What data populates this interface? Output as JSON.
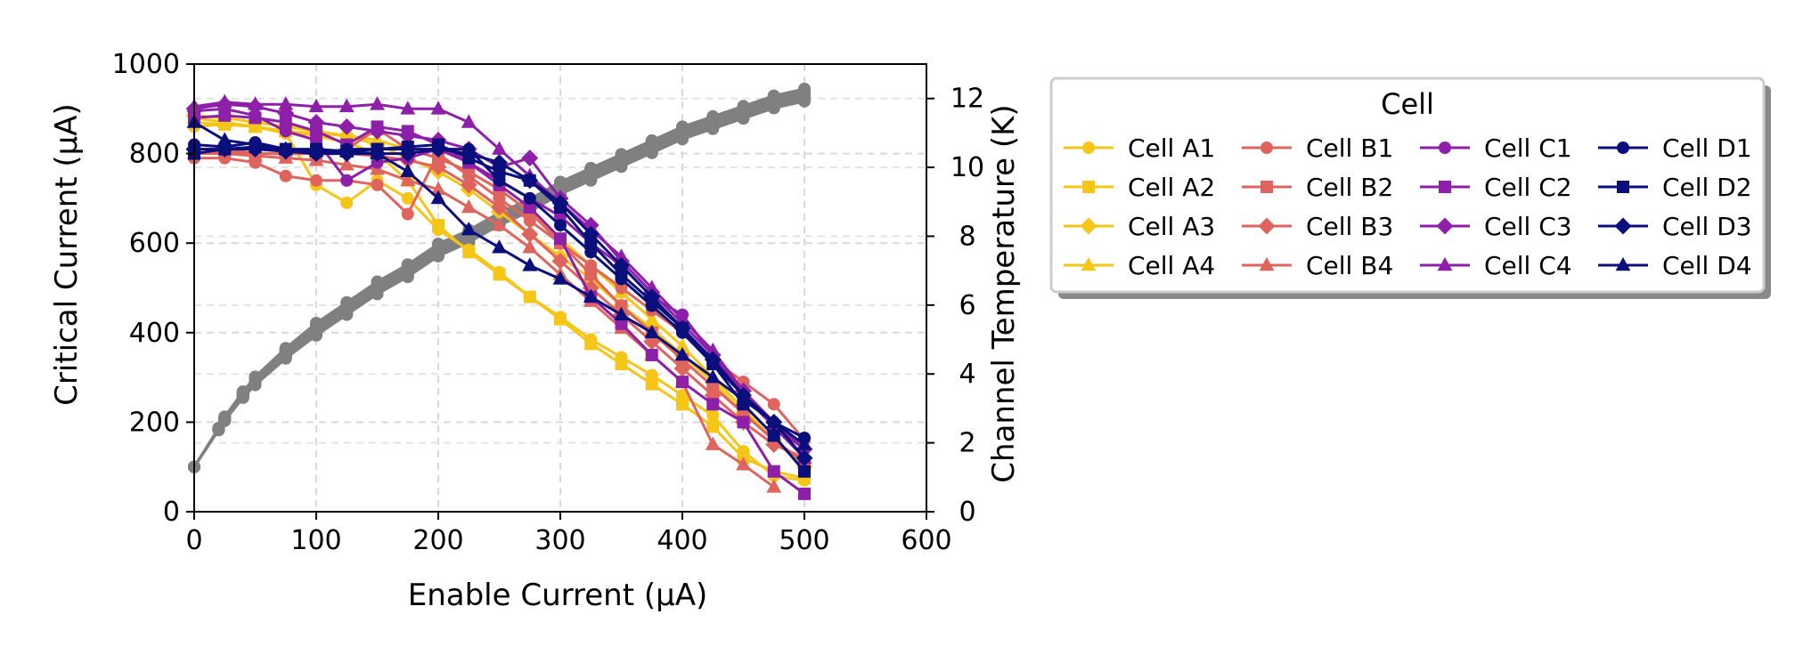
{
  "chart_data": {
    "type": "line",
    "xlabel": "Enable Current (μA)",
    "ylabel": "Critical Current (μA)",
    "y2label": "Channel Temperature (K)",
    "xlim": [
      0,
      600
    ],
    "ylim": [
      0,
      1000
    ],
    "y2lim": [
      0,
      13
    ],
    "xticks": [
      0,
      100,
      200,
      300,
      400,
      500,
      600
    ],
    "yticks": [
      0,
      200,
      400,
      600,
      800,
      1000
    ],
    "y2ticks": [
      0,
      2,
      4,
      6,
      8,
      10,
      12
    ],
    "grid": true,
    "legend": {
      "title": "Cell",
      "placement": "outside-right",
      "columns": 4
    },
    "series": [
      {
        "name": "Cell A1",
        "color": "#f5c518",
        "marker": "circle",
        "x": [
          0,
          25,
          50,
          75,
          100,
          125,
          150,
          175,
          200,
          225,
          250,
          275,
          300,
          325,
          350,
          375,
          400,
          425,
          450,
          475,
          500
        ],
        "y": [
          860,
          865,
          860,
          845,
          730,
          690,
          740,
          700,
          630,
          585,
          535,
          480,
          435,
          385,
          345,
          305,
          260,
          215,
          135,
          80,
          70
        ]
      },
      {
        "name": "Cell A2",
        "color": "#f5c518",
        "marker": "square",
        "x": [
          0,
          25,
          50,
          75,
          100,
          125,
          150,
          175,
          200,
          225,
          250,
          275,
          300,
          325,
          350,
          375,
          400,
          425,
          450,
          475,
          500
        ],
        "y": [
          870,
          865,
          860,
          850,
          840,
          825,
          800,
          740,
          640,
          580,
          530,
          480,
          430,
          375,
          330,
          285,
          240,
          190,
          120,
          90,
          75
        ]
      },
      {
        "name": "Cell A3",
        "color": "#f5c518",
        "marker": "diamond",
        "x": [
          0,
          25,
          50,
          75,
          100,
          125,
          150,
          175,
          200,
          225,
          250,
          275,
          300,
          325,
          350,
          375,
          400,
          425,
          450,
          475,
          500
        ],
        "y": [
          885,
          880,
          870,
          860,
          850,
          840,
          820,
          790,
          760,
          720,
          670,
          620,
          570,
          520,
          460,
          410,
          350,
          290,
          220,
          160,
          100
        ]
      },
      {
        "name": "Cell A4",
        "color": "#f5c518",
        "marker": "triangle",
        "x": [
          0,
          25,
          50,
          75,
          100,
          125,
          150,
          175,
          200,
          225,
          250,
          275,
          300,
          325,
          350,
          375,
          400,
          425,
          450,
          475,
          500
        ],
        "y": [
          880,
          870,
          860,
          850,
          845,
          840,
          830,
          810,
          790,
          760,
          720,
          670,
          610,
          550,
          490,
          430,
          370,
          300,
          230,
          160,
          110
        ]
      },
      {
        "name": "Cell B1",
        "color": "#e0645e",
        "marker": "circle",
        "x": [
          0,
          25,
          50,
          75,
          100,
          125,
          150,
          175,
          200,
          225,
          250,
          275,
          300,
          325,
          350,
          375,
          400,
          425,
          450,
          475,
          500
        ],
        "y": [
          790,
          790,
          780,
          750,
          740,
          740,
          730,
          665,
          800,
          750,
          700,
          650,
          600,
          550,
          500,
          450,
          400,
          340,
          290,
          240,
          160
        ]
      },
      {
        "name": "Cell B2",
        "color": "#e0645e",
        "marker": "square",
        "x": [
          0,
          25,
          50,
          75,
          100,
          125,
          150,
          175,
          200,
          225,
          250,
          275,
          300,
          325,
          350,
          375,
          400,
          425,
          450,
          475,
          500
        ],
        "y": [
          800,
          805,
          800,
          800,
          800,
          810,
          855,
          810,
          790,
          760,
          720,
          670,
          600,
          530,
          460,
          400,
          340,
          280,
          220,
          160,
          110
        ]
      },
      {
        "name": "Cell B3",
        "color": "#e0645e",
        "marker": "diamond",
        "x": [
          0,
          25,
          50,
          75,
          100,
          125,
          150,
          175,
          200,
          225,
          250,
          275,
          300,
          325,
          350,
          375,
          400,
          425,
          450,
          475,
          500
        ],
        "y": [
          810,
          810,
          800,
          800,
          800,
          800,
          795,
          785,
          770,
          730,
          680,
          620,
          560,
          500,
          440,
          380,
          320,
          260,
          200,
          150,
          120
        ]
      },
      {
        "name": "Cell B4",
        "color": "#e0645e",
        "marker": "triangle",
        "x": [
          0,
          25,
          50,
          75,
          100,
          125,
          150,
          175,
          200,
          225,
          250,
          275,
          300,
          325,
          350,
          375,
          400,
          425,
          450,
          475,
          500
        ],
        "y": [
          800,
          800,
          795,
          790,
          785,
          775,
          765,
          740,
          720,
          680,
          640,
          590,
          530,
          470,
          410,
          350,
          290,
          150,
          105,
          55,
          null
        ]
      },
      {
        "name": "Cell C1",
        "color": "#8e1fa8",
        "marker": "circle",
        "x": [
          0,
          25,
          50,
          75,
          100,
          125,
          150,
          175,
          200,
          225,
          250,
          275,
          300,
          325,
          350,
          375,
          400,
          425,
          450,
          475,
          500
        ],
        "y": [
          895,
          900,
          885,
          850,
          830,
          740,
          780,
          790,
          810,
          780,
          740,
          700,
          660,
          600,
          550,
          480,
          440,
          350,
          260,
          190,
          140
        ]
      },
      {
        "name": "Cell C2",
        "color": "#8e1fa8",
        "marker": "square",
        "x": [
          0,
          25,
          50,
          75,
          100,
          125,
          150,
          175,
          200,
          225,
          250,
          275,
          300,
          325,
          350,
          375,
          400,
          425,
          450,
          475,
          500
        ],
        "y": [
          880,
          885,
          880,
          870,
          850,
          820,
          860,
          850,
          820,
          780,
          730,
          680,
          610,
          480,
          420,
          350,
          290,
          240,
          200,
          90,
          40
        ]
      },
      {
        "name": "Cell C3",
        "color": "#8e1fa8",
        "marker": "diamond",
        "x": [
          0,
          25,
          50,
          75,
          100,
          125,
          150,
          175,
          200,
          225,
          250,
          275,
          300,
          325,
          350,
          375,
          400,
          425,
          450,
          475,
          500
        ],
        "y": [
          900,
          910,
          905,
          890,
          870,
          860,
          850,
          840,
          830,
          810,
          770,
          790,
          700,
          640,
          560,
          490,
          420,
          350,
          270,
          200,
          140
        ]
      },
      {
        "name": "Cell C4",
        "color": "#8e1fa8",
        "marker": "triangle",
        "x": [
          0,
          25,
          50,
          75,
          100,
          125,
          150,
          175,
          200,
          225,
          250,
          275,
          300,
          325,
          350,
          375,
          400,
          425,
          450,
          475,
          500
        ],
        "y": [
          905,
          915,
          910,
          910,
          905,
          905,
          910,
          900,
          900,
          870,
          810,
          750,
          690,
          630,
          570,
          500,
          430,
          360,
          270,
          190,
          120
        ]
      },
      {
        "name": "Cell D1",
        "color": "#0b0f7c",
        "marker": "circle",
        "x": [
          0,
          25,
          50,
          75,
          100,
          125,
          150,
          175,
          200,
          225,
          250,
          275,
          300,
          325,
          350,
          375,
          400,
          425,
          450,
          475,
          500
        ],
        "y": [
          820,
          815,
          825,
          810,
          800,
          810,
          810,
          810,
          810,
          810,
          740,
          700,
          640,
          580,
          520,
          460,
          400,
          330,
          260,
          200,
          165
        ]
      },
      {
        "name": "Cell D2",
        "color": "#0b0f7c",
        "marker": "square",
        "x": [
          0,
          25,
          50,
          75,
          100,
          125,
          150,
          175,
          200,
          225,
          250,
          275,
          300,
          325,
          350,
          375,
          400,
          425,
          450,
          475,
          500
        ],
        "y": [
          800,
          810,
          815,
          810,
          810,
          805,
          810,
          815,
          820,
          790,
          760,
          740,
          680,
          600,
          530,
          470,
          410,
          330,
          240,
          170,
          90
        ]
      },
      {
        "name": "Cell D3",
        "color": "#0b0f7c",
        "marker": "diamond",
        "x": [
          0,
          25,
          50,
          75,
          100,
          125,
          150,
          175,
          200,
          225,
          250,
          275,
          300,
          325,
          350,
          375,
          400,
          425,
          450,
          475,
          500
        ],
        "y": [
          810,
          810,
          810,
          805,
          800,
          800,
          800,
          800,
          810,
          800,
          780,
          740,
          690,
          620,
          550,
          480,
          410,
          340,
          260,
          200,
          120
        ]
      },
      {
        "name": "Cell D4",
        "color": "#0b0f7c",
        "marker": "triangle",
        "x": [
          0,
          25,
          50,
          75,
          100,
          125,
          150,
          175,
          200,
          225,
          250,
          275,
          300,
          325,
          350,
          375,
          400,
          425,
          450,
          475,
          500
        ],
        "y": [
          870,
          830,
          820,
          810,
          805,
          805,
          800,
          760,
          700,
          630,
          590,
          550,
          520,
          480,
          440,
          400,
          350,
          300,
          250,
          200,
          150
        ]
      }
    ],
    "temperature_series": {
      "color": "#808080",
      "x": [
        0,
        20,
        25,
        40,
        50,
        75,
        100,
        125,
        150,
        175,
        200,
        225,
        250,
        275,
        300,
        325,
        350,
        375,
        400,
        425,
        450,
        475,
        500
      ],
      "y": [
        1.3,
        2.4,
        2.7,
        3.4,
        3.8,
        4.6,
        5.3,
        5.9,
        6.5,
        7.0,
        7.6,
        8.0,
        8.5,
        8.9,
        9.4,
        9.8,
        10.2,
        10.6,
        11.0,
        11.3,
        11.6,
        11.9,
        12.1
      ],
      "spread": 0.18,
      "count": 16
    }
  }
}
